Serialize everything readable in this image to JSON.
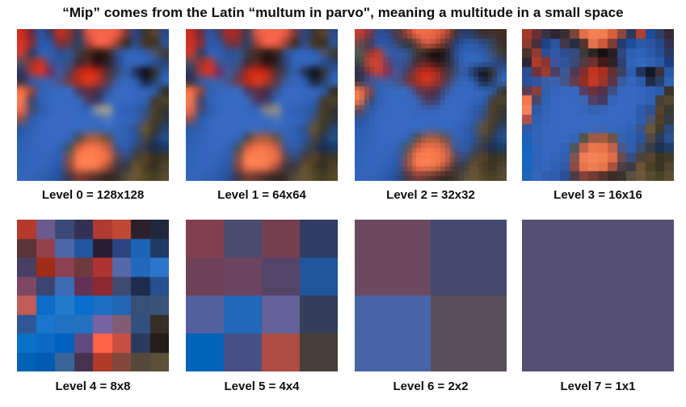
{
  "title": "“Mip” comes from the Latin “multum in parvo\", meaning a multitude in a small space",
  "levels": [
    {
      "label": "Level 0 = 128x128",
      "native": 128,
      "grid": 16,
      "pixels": [
        "ce2c1e 6e2c3c 2e55a4 3c3c60 c42e20 8c3434 3a3c58 e05644 f4654a f6664c ea5a42 7c3a38 2a4682 3a3430 5c442e 2a488a",
        "d83226 8c2e36 2d58aa 2e55a0 7c3038 6a3844 2a4068 a84438 f06048 ea5c44 9e4438 3a2e26 2e4c8e 463828 3e3222 2e528e",
        "cc3a30 3a3c5e 2f5cb0 3160b2 2c5096 34548e 3c3c48 462c1e 2a1812 3c241a 384878 3060b4 3162b6 2f5cae 4c5470 403c38",
        "5a4c5e 963434 c43628 48548e 33549c 3a5080 3e2a36 5e2420 300d10 2c1e24 2e4278 3166ba 3468bc 3162b4 2a5298 2a4478",
        "2c3864 a03a3c d83426 763062 3f5a9e 544060 b02a1c d82812 b82616 523036 3a4668 3160b2 26325a 0c101e 343030 2c5aa4",
        "3c3444 36559e 3c60aa 4260a4 48568a 7a3c46 b42c18 dc3c1e b63426 5e3a4a 3a5aa0 3467bc 2c5cb0 1a2640 2a4066 3064b4",
        "f46e44 98463a 3060ac 3467bc 3668c0 386abf 4c3e66 682c3c 483048 3a5088 3768c0 3769c2 3467bc 3162b6 2c5cac 34302a",
        "f27a50 484467 3062b4 3668c0 3769c2 3668c0 3a66b4 4c3c66 403a62 3664b8 3769c2 3668c0 3366bc 3060b4 423c3a 4c442c",
        "ea6a50 4c4a6c 2e5aa8 3366bc 3769c2 3769c2 3568c0 3364b6 8a9097 9a9c8e 3668c0 3162b6 2e5eb2 2c548e 4e3e28 343230",
        "8e5450 2e5aa8 3366bc 3769c2 3769c2 3769c2 3769c2 3769c2 3c6cc0 5078bc 3668c0 3366bc 2f60b2 46506e 4a3e24 2e3840",
        "2e58a4 3060b2 3567be 3769c2 3769c2 3769c2 3668c0 3e6ab8 3e66b0 3668be 3366bc 3060b4 32548c 665434 3c3a2c 264472",
        "2c5eb2 3264b8 3567be 3769c2 3668c0 3363b4 4e4e52 a45a40 a85c3e 6e5246 3a62a8 2f5fb2 2a539e 4a4440 283654 244e88",
        "2e62b6 3366bc 3567be 3668c0 3062b4 4a545e d25e3e f6744a f2724a ca5e44 485486 2e5cae 344a70 363844 182c4c 1c3864",
        "3064b8 3366bc 3567be 3464b8 2f5cae 88524a f87c4e fe8454 f87e4c e86c44 66484c 344a7c 484038 56422a 383020 403824",
        "3064b8 3366bc 3366bc 3161b4 2c58a4 8c4a40 f0744a f87c50 f0744a aa503a 483840 383840 685232 4a3e22 36301e 4e4430",
        "3366bc 3264b8 3060b2 2c5aab 284e92 46384a 823c32 6e382e 52302a 382824 383028 544c3c 6a5634 564828 463e24 584c2e"
      ]
    },
    {
      "label": "Level 1 = 64x64",
      "native": 64,
      "grid": 16,
      "pixels": [
        "c42c22 6e2c3c 2e55a4 474064 b02c24 942e2e 3c3c58 d85846 f2654c f4664c e85a44 7c3a38 2c4884 3c3430 58402c 2c4a8c",
        "d03226 8c2e36 2d58aa 2e55a0 6e3440 6e3440 2c4068 a44438 ee6048 e85c44 9c4438 3c3028 2e4c8e 443626 3c3020 2e528e",
        "ca3a30 3c3c5c 2f5cb0 3160b2 2c5096 34548e 3c3c48 442c20 2c1a14 3c241c 384878 3060b4 3162b6 2f5cae 4c5470 403c38",
        "5c4c5c 943434 c03830 48548e 33549c 3a5080 3e2c38 5c2420 300f12 2c2026 2e4278 3166ba 3468bc 3162b4 2a5298 2a4478",
        "2c3864 9c3a3c d43428 743060 3f5a9e 544060 ac2a1e d42814 b42618 523036 3a4668 3160b2 26325a 0e1220 343030 2c5aa4",
        "3c3444 36559e 3c60aa 4260a4 48568a 763c48 b02c1a d83c20 b23428 5e3a4a 3a5aa0 3467bc 2c5cb0 1c2840 2a4066 3064b4",
        "f26e46 96463c 3060ac 3467bc 3668c0 386abf 4c3e66 662c3c 483048 3a5088 3768c0 3769c2 3467bc 3162b6 2c5cac 34302c",
        "f07850 484467 3062b4 3668c0 3769c2 3668c0 3a66b4 4c3c66 403a62 3664b8 3769c2 3668c0 3366bc 3060b4 423c3a 4a422c",
        "e86a52 4c4a6c 2e5aa8 3366bc 3769c2 3769c2 3568c0 3364b6 7e8288 8c8c84 3668c0 3162b6 2e5eb2 2c548e 4c3c28 343230",
        "8c5452 2e5aa8 3366bc 3769c2 3769c2 3769c2 3769c2 3769c2 3c6cc0 4c74b8 3668c0 3366bc 2f60b2 46506e 483c24 2e3840",
        "2e58a4 3060b2 3567be 3769c2 3769c2 3769c2 3668c0 3e6ab8 3e66b0 3668be 3366bc 3060b4 32548c 645232 3c3a2c 264472",
        "2c5eb2 3264b8 3567be 3769c2 3668c0 3363b4 4e4e52 a25a42 a65c40 6e5246 3a62a8 2f5fb2 2a539e 4a4440 283654 244e88",
        "2e62b6 3366bc 3567be 3668c0 3062b4 4a545e d05e40 f4744a f0724a c85e46 485486 2e5cae 344a70 363844 182c4c 1c3864",
        "3064b8 3366bc 3567be 3464b8 2f5cae 86524a f67c50 fc8254 f67e4c e66c46 66484c 344a7c 484038 54402a 383020 3f3824",
        "3064b8 3366bc 3366bc 3161b4 2c58a4 8a4a42 ee744c f67c50 ee744a a8503c 483840 383840 665032 483c22 36301e 4d422e",
        "3366bc 3264b8 3060b2 2c5aab 284e92 46384a 803c34 6c3830 52302a 382824 383028 544c3c 685434 544828 463e24 564a2e"
      ]
    },
    {
      "label": "Level 2 = 32x32",
      "native": 32,
      "grid": 16,
      "pixels": [
        "c04030 8a3240 2c4f96 31488a 4c3a44 a04434 ec6848 f26c4c e86444 c44c38 503430 263e72 2e3a56 3c2c2c 403430 442c24",
        "6c4c50 3c3c52 2f58a6 2e55a2 3c4464 2c3440 683c34 d05c40 b04c38 623230 283c6e 2b58a8 2e5cac 2a4c8e 364464 3c3028",
        "4e5a58 8c3838 c03c2c 3c5ca4 355aa8 34548e 423c40 2c2018 140c10 241a1e 2e4a84 2f62b4 3064b6 2e5cac 44506e 3c3a36",
        "3e4a46 c04434 d04434 64406a 32569e 3a5080 442c38 5c2624 38161a 2c2428 304478 3166ba 3468bc 3162b4 2a5298 2c4072",
        "2c3050 883a40 c8423a 843052 3f5a9e 4c3c5c 9e3028 cc2c18 ac2a1e 583034 3a4668 3160b2 28355e 10141e 36302c 2c5aa4",
        "3c3444 34549e 3a5ea8 3e60a8 44568c 6c3a4c a42e20 cc3a22 a8342a 5c3848 3a5aa0 3467bc 2c5cb0 1e2a44 2a4066 3064b4",
        "f4714a 92443c 3060ac 3467bc 3668c0 386abf 523e64 6a2f3e 4e3048 3a5088 3768c0 3769c2 3467bc 3162b6 2c5cac 383430",
        "ee7a52 4a4668 3062b4 3668c0 3769c2 3668c0 3a66b4 4e3e68 423a62 3664b8 3769c2 3668c0 3366bc 3060b4 443e3c 4c442e",
        "6a4a50 2e5aa8 3264b8 3769c2 3769c2 3769c2 3666bc 3561b2 3564b8 3769c2 3769c2 3668c0 2f5cb0 2a5092 52402c 383630",
        "2e55a0 3060b0 3567be 3769c2 3769c2 3769c2 3769c2 3769c2 3769c2 3769c2 3668c0 3366bc 2e5cae 48506c 4a3e26 303a40",
        "2a5cb0 3162b6 3567be 3769c2 3769c2 3769c2 3668c0 3c68b6 3e64ac 3668be 3366bc 2f62b6 34548a 665234 3e3a2c 284674",
        "2c60b4 3264b8 3567be 3769c2 3668c0 3363b4 504e50 a05a42 a45c40 6e5246 3a62a8 2f5fb2 2a539e 4c4640 2a3856 26508a",
        "2e62b6 3366bc 3567be 3668c0 3062b4 4c5660 cc5c40 f2724a ee704a c65e46 4a5686 2e5cae 364c72 383a46 1a2e4e 1e3a66",
        "3064b8 3366bc 3567be 3464b8 2f5cae 84524a f47a50 fa8054 f47c4c e46a46 684a4e 364c7e 4a423a 56422c 3a3222 413a26",
        "3064b8 3366bc 3366bc 3161b4 2c58a4 8a4a42 ec724c f47a50 ec724a a6503c 4a3a42 3a3a42 685234 4a3e24 383220 4f4430",
        "3366bc 3264b8 3060b2 2c5aab 284e92 483a46 823e36 6e3a32 54322a 3a2a26 3a322a 564e3e 6a5636 564a2e 484026 584c30"
      ]
    },
    {
      "label": "Level 3 = 16x16",
      "native": 16,
      "grid": 16,
      "pixels": [
        "a33a26 6d2d38 34334a 2f2430 3c2f33 7a4436 e07048 f58054 f07e52 d75f3c 8a4840 2d3a5e b04030 1d4c9a 2c3f68 3a2836",
        "8c3b2e 4c2e3c 1f4288 2a549e 403848 252f42 54342e e4734c ce5a3a 7c3a34 243c6e 1e4f9e 2c5aa6 2b55a0 224a90 32304e",
        "4a342c 933b30 2c4e94 2f5aa8 2b4e92 354a80 3e3a3a 2c2520 180f14 2a1d22 2f487e 2a5fb2 2e64b8 2a5cac 244e96 2c3a62",
        "302438 b03a28 8c3430 3c559e 30549c 394a7c 523c40 6e2f2e 421a1c 2e2228 2e4172 3064b6 3268be 2f62b4 2a5aa8 1c3f80",
        "2c4c94 70333e 9e3a2c 4c3f62 3c5796 4c3a54 842e2e c03420 a82e1e 623030 3c4366 2e5eb0 23345c 121824 3c3040 2859a4",
        "2a5098 2f55a0 3a5ea8 3c60aa 42568e 663a50 922e24 c23a24 9e342a 5c3648 3a5aa0 3366bc 2b5cb0 202c48 28406e 2e62b4",
        "5c3c54 8a4038 3060ac 3366bc 3668be 3769c0 563e62 6e2f3c 523048 3c5088 3768c0 3769c2 3366bc 2f62b6 2a5cac 3a342e",
        "f4764e 4c4668 2e62b4 3668c0 3769c2 3668c0 3a66b4 523e66 443a62 3664b8 3769c2 3668c0 3366bc 3060b4 463f3c 54452e",
        "f8805a 2e5aa8 3264b8 3668c0 3769c2 3769c2 3666bc 3561b2 3564b8 3769c2 3769c2 3668c0 2f5cb0 2c5295 56432e 3a3832",
        "b05048 3060b0 3465ba 3668c0 3769c2 3769c2 3769c2 3769c2 3769c2 3769c2 3668c0 3366bc 2e5cae 4c5470 4e4026 323c42",
        "2e58a8 3162b6 3567be 3769c2 3769c2 3769c2 3668c0 3d69b8 3f66ae 3668be 3366bc 2f62b6 36568c 6a5638 403c2e 2a4878",
        "1a62ba 3264b8 3567be 3668c0 3769c2 3464b8 57524e 9c5a44 a05c42 705448 3a62a8 2f5fb2 2c55a0 504a42 2c3a58 28528c",
        "1466bc 2e64ba 3567be 3668c0 3163b6 50585e c06046 ea764e e8744c c26048 4c5888 2e5cae 384e74 3a3c48 1c3050 203c68",
        "1268c0 2e64ba 3567be 3464b8 315eb0 82564e ee7c54 f58258 f0804e e06c48 6a4c50 384e80 4c443c 58442e 3c3424 433b28",
        "1467be 3064b8 3366bc 3161b4 2e5aa8 8c4c44 e8744e f07c52 e8744c a6523e 4c3c44 3c3c44 6a5436 4c4026 3a3422 514631",
        "2066b8 3366bc 3060b2 2e5cae 2a4f94 4c3c48 84423a 703c34 58342c 3c2c28 3c342c 585040 6c5838 584c30 4a4228 5a4e32"
      ]
    },
    {
      "label": "Level 4 = 8x8",
      "native": 8,
      "grid": 8,
      "pixels": [
        "b53a2c 6b5a8c 3a4a74 333254 b03c31 c04936 2e1f2c 222740",
        "5c3336 94414d 4a68a8 2255a0 271e33 2a4580 1d64b4 1f3a66",
        "474064 9e2c17 8c4052 6e3a3e ae3431 5568a8 2268bc 2e75cd",
        "7e4864 3c4472 3e6cb4 633156 8c2830 414a70 1e2c4e 26508e",
        "c05b57 0c6cc8 2279cc 0a6ecd 1b6ec2 2066b2 365078 3a5378",
        "2f5696 1a75cc 2070c4 2670c0 7762a2 815c74 32507e 372e26",
        "0a71c8 0b6ac4 0060c0 614a80 ff6448 c94f43 2b3a5c 231d17",
        "0062b4 005cb0 3a6598 44324e b03a28 84473e 55493c 5c5038"
      ]
    },
    {
      "label": "Level 5 = 4x4",
      "native": 4,
      "grid": 4,
      "pixels": [
        "823f4d 4b4a6f 74404f 2f3c63",
        "6e4159 6c4460 564368 1f569b",
        "52619e 2268bb 62619a 343e58",
        "0064ba 475085 ad4c42 473f39"
      ]
    },
    {
      "label": "Level 6 = 2x2",
      "native": 2,
      "grid": 2,
      "pixels": [
        "6d4961 44496d",
        "4765a6 5a4e5b"
      ]
    },
    {
      "label": "Level 7 = 1x1",
      "native": 1,
      "grid": 1,
      "pixels": [
        "555073"
      ]
    }
  ]
}
